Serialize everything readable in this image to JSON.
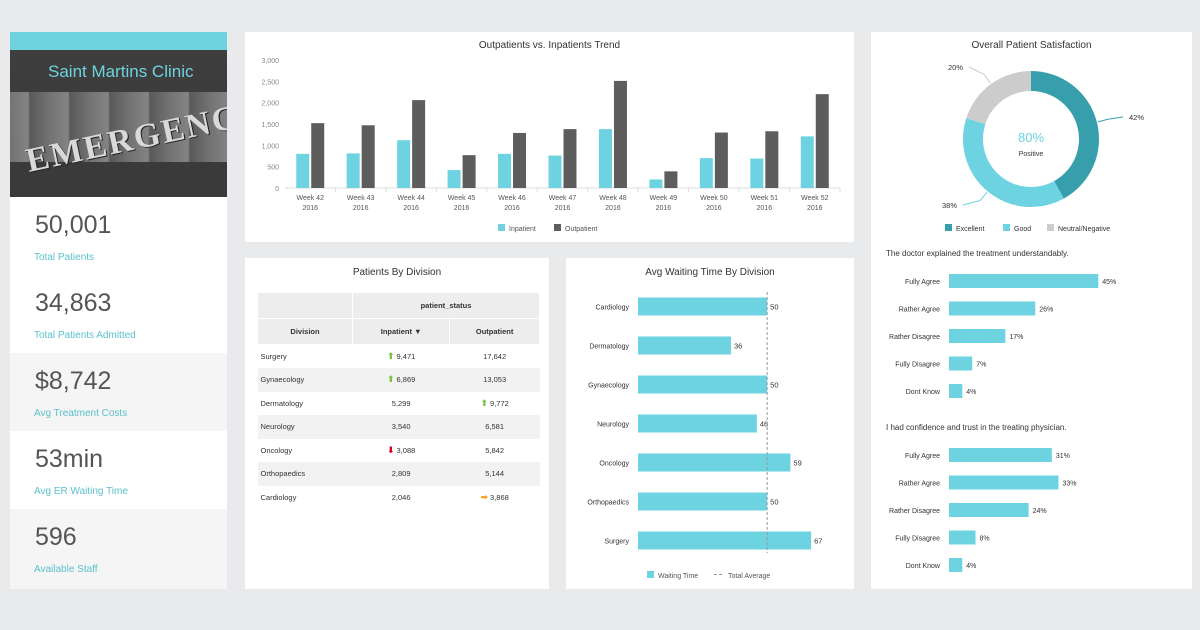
{
  "clinic": {
    "name": "Saint Martins Clinic",
    "sign_text": "EMERGENCY"
  },
  "kpis": [
    {
      "value": "50,001",
      "label": "Total Patients"
    },
    {
      "value": "34,863",
      "label": "Total Patients Admitted"
    },
    {
      "value": "$8,742",
      "label": "Avg Treatment Costs"
    },
    {
      "value": "53min",
      "label": "Avg ER Waiting Time"
    },
    {
      "value": "596",
      "label": "Available Staff"
    }
  ],
  "colors": {
    "inpatient": "#6dd3e0",
    "outpatient": "#5d5d5d",
    "excellent": "#379fac",
    "good": "#6dd3e0",
    "neutral": "#cccccc",
    "accent": "#6fd3df"
  },
  "chart_data": [
    {
      "type": "bar",
      "title": "Outpatients vs. Inpatients Trend",
      "categories": [
        "Week 42|2016",
        "Week 43|2016",
        "Week 44|2016",
        "Week 45|2016",
        "Week 46|2016",
        "Week 47|2016",
        "Week 48|2016",
        "Week 49|2016",
        "Week 50|2016",
        "Week 51|2016",
        "Week 52|2016"
      ],
      "series": [
        {
          "name": "Inpatient",
          "values": [
            800,
            810,
            1120,
            420,
            800,
            760,
            1380,
            200,
            700,
            690,
            1210
          ]
        },
        {
          "name": "Outpatient",
          "values": [
            1520,
            1470,
            2060,
            770,
            1290,
            1380,
            2510,
            390,
            1300,
            1330,
            2200
          ]
        }
      ],
      "yticks": [
        "3,000",
        "2,500",
        "2,000",
        "1,500",
        "1,000",
        "500",
        "0"
      ],
      "ylim": [
        0,
        3000
      ],
      "grid": false,
      "legend": "bottom"
    },
    {
      "type": "table",
      "title": "Patients By Division",
      "group_header": "patient_status",
      "columns": [
        "Division",
        "Inpatient ▼",
        "Outpatient"
      ],
      "rows": [
        {
          "division": "Surgery",
          "inpatient": "9,471",
          "outpatient": "17,642",
          "in_arrow": "up",
          "out_arrow": ""
        },
        {
          "division": "Gynaecology",
          "inpatient": "6,869",
          "outpatient": "13,053",
          "in_arrow": "up",
          "out_arrow": ""
        },
        {
          "division": "Dermatology",
          "inpatient": "5,299",
          "outpatient": "9,772",
          "in_arrow": "",
          "out_arrow": "up"
        },
        {
          "division": "Neurology",
          "inpatient": "3,540",
          "outpatient": "6,581",
          "in_arrow": "",
          "out_arrow": ""
        },
        {
          "division": "Oncology",
          "inpatient": "3,088",
          "outpatient": "5,842",
          "in_arrow": "down",
          "out_arrow": ""
        },
        {
          "division": "Orthopaedics",
          "inpatient": "2,809",
          "outpatient": "5,144",
          "in_arrow": "",
          "out_arrow": ""
        },
        {
          "division": "Cardiology",
          "inpatient": "2,046",
          "outpatient": "3,868",
          "in_arrow": "",
          "out_arrow": "right"
        }
      ]
    },
    {
      "type": "bar",
      "orientation": "horizontal",
      "title": "Avg Waiting Time By Division",
      "categories": [
        "Cardiology",
        "Dermatology",
        "Gynaecology",
        "Neurology",
        "Oncology",
        "Orthopaedics",
        "Surgery"
      ],
      "values": [
        50,
        36,
        50,
        46,
        59,
        50,
        67
      ],
      "labels": [
        "50",
        "36",
        "50",
        "46",
        "59",
        "50",
        "67"
      ],
      "reference_line": {
        "name": "Total Average",
        "value": 50
      },
      "series_name": "Waiting Time",
      "xlim": [
        0,
        72
      ],
      "legend": "bottom"
    },
    {
      "type": "pie",
      "donut": true,
      "title": "Overall Patient Satisfaction",
      "center_value": "80%",
      "center_label": "Positive",
      "slices": [
        {
          "name": "Excellent",
          "value": 42,
          "label": "42%"
        },
        {
          "name": "Good",
          "value": 38,
          "label": "38%"
        },
        {
          "name": "Neutral/Negative",
          "value": 20,
          "label": "20%"
        }
      ],
      "legend": "bottom"
    },
    {
      "type": "bar",
      "orientation": "horizontal",
      "title": "The doctor explained the treatment understandably.",
      "categories": [
        "Fully Agree",
        "Rather Agree",
        "Rather Disagree",
        "Fully Disagree",
        "Dont Know"
      ],
      "values": [
        45,
        26,
        17,
        7,
        4
      ],
      "labels": [
        "45%",
        "26%",
        "17%",
        "7%",
        "4%"
      ],
      "xlim": [
        0,
        50
      ]
    },
    {
      "type": "bar",
      "orientation": "horizontal",
      "title": "I had confidence and trust in the treating physician.",
      "categories": [
        "Fully Agree",
        "Rather Agree",
        "Rather Disagree",
        "Fully Disagree",
        "Dont Know"
      ],
      "values": [
        31,
        33,
        24,
        8,
        4
      ],
      "labels": [
        "31%",
        "33%",
        "24%",
        "8%",
        "4%"
      ],
      "xlim": [
        0,
        50
      ]
    }
  ]
}
